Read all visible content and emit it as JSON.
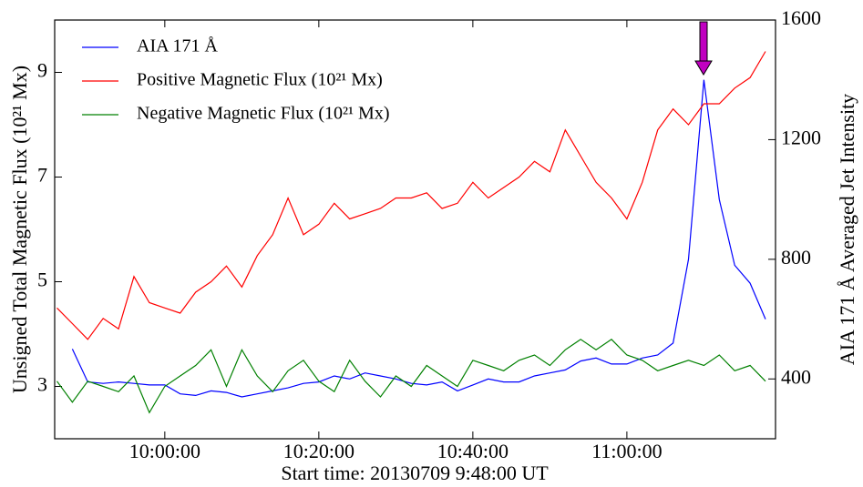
{
  "chart_data": {
    "type": "line",
    "xlabel": "Start time: 20130709 9:48:00 UT",
    "ylabel": "Unsigned Total Magnetic Flux (10²¹ Mx)",
    "y2label": "AIA 171 Å Averaged Jet Intensity",
    "x": [
      586,
      588,
      590,
      592,
      594,
      596,
      598,
      600,
      602,
      604,
      606,
      608,
      610,
      612,
      614,
      616,
      618,
      620,
      622,
      624,
      626,
      628,
      630,
      632,
      634,
      636,
      638,
      640,
      642,
      644,
      646,
      648,
      650,
      652,
      654,
      656,
      658,
      660,
      662,
      664,
      666,
      668,
      670,
      672,
      674,
      676,
      678
    ],
    "xlim": [
      585.7,
      679.3
    ],
    "xticks": [
      {
        "value": 600,
        "label": "10:00:00"
      },
      {
        "value": 620,
        "label": "10:20:00"
      },
      {
        "value": 640,
        "label": "10:40:00"
      },
      {
        "value": 660,
        "label": "11:00:00"
      }
    ],
    "ylim": [
      2,
      10
    ],
    "yticks": [
      3,
      5,
      7,
      9
    ],
    "y2lim": [
      200,
      1600
    ],
    "y2ticks": [
      400,
      800,
      1200,
      1600
    ],
    "legend": "upper left",
    "series": [
      {
        "name": "AIA 171 Å",
        "color": "#0000ff",
        "axis": "y2",
        "values": [
          null,
          500,
          390,
          385,
          390,
          385,
          380,
          380,
          350,
          345,
          360,
          355,
          340,
          350,
          360,
          370,
          385,
          390,
          410,
          400,
          420,
          410,
          400,
          385,
          380,
          390,
          360,
          380,
          400,
          390,
          390,
          410,
          420,
          430,
          460,
          470,
          450,
          450,
          470,
          480,
          520,
          800,
          1400,
          1000,
          780,
          720,
          600
        ]
      },
      {
        "name": "Positive Magnetic Flux (10²¹ Mx)",
        "color": "#ff0000",
        "values": [
          4.5,
          4.2,
          3.9,
          4.3,
          4.1,
          5.1,
          4.6,
          4.5,
          4.4,
          4.8,
          5.0,
          5.3,
          4.9,
          5.5,
          5.9,
          6.6,
          5.9,
          6.1,
          6.5,
          6.2,
          6.3,
          6.4,
          6.6,
          6.6,
          6.7,
          6.4,
          6.5,
          6.9,
          6.6,
          6.8,
          7.0,
          7.3,
          7.1,
          7.9,
          7.4,
          6.9,
          6.6,
          6.2,
          6.9,
          7.9,
          8.3,
          8.0,
          8.4,
          8.4,
          8.7,
          8.9,
          9.4
        ]
      },
      {
        "name": "Negative Magnetic Flux (10²¹ Mx)",
        "color": "#008000",
        "values": [
          3.1,
          2.7,
          3.1,
          3.0,
          2.9,
          3.2,
          2.5,
          3.0,
          3.2,
          3.4,
          3.7,
          3.0,
          3.7,
          3.2,
          2.9,
          3.3,
          3.5,
          3.1,
          2.9,
          3.5,
          3.1,
          2.8,
          3.2,
          3.0,
          3.4,
          3.2,
          3.0,
          3.5,
          3.4,
          3.3,
          3.5,
          3.6,
          3.4,
          3.7,
          3.9,
          3.7,
          3.9,
          3.6,
          3.5,
          3.3,
          3.4,
          3.5,
          3.4,
          3.6,
          3.3,
          3.4,
          3.1
        ]
      }
    ]
  }
}
